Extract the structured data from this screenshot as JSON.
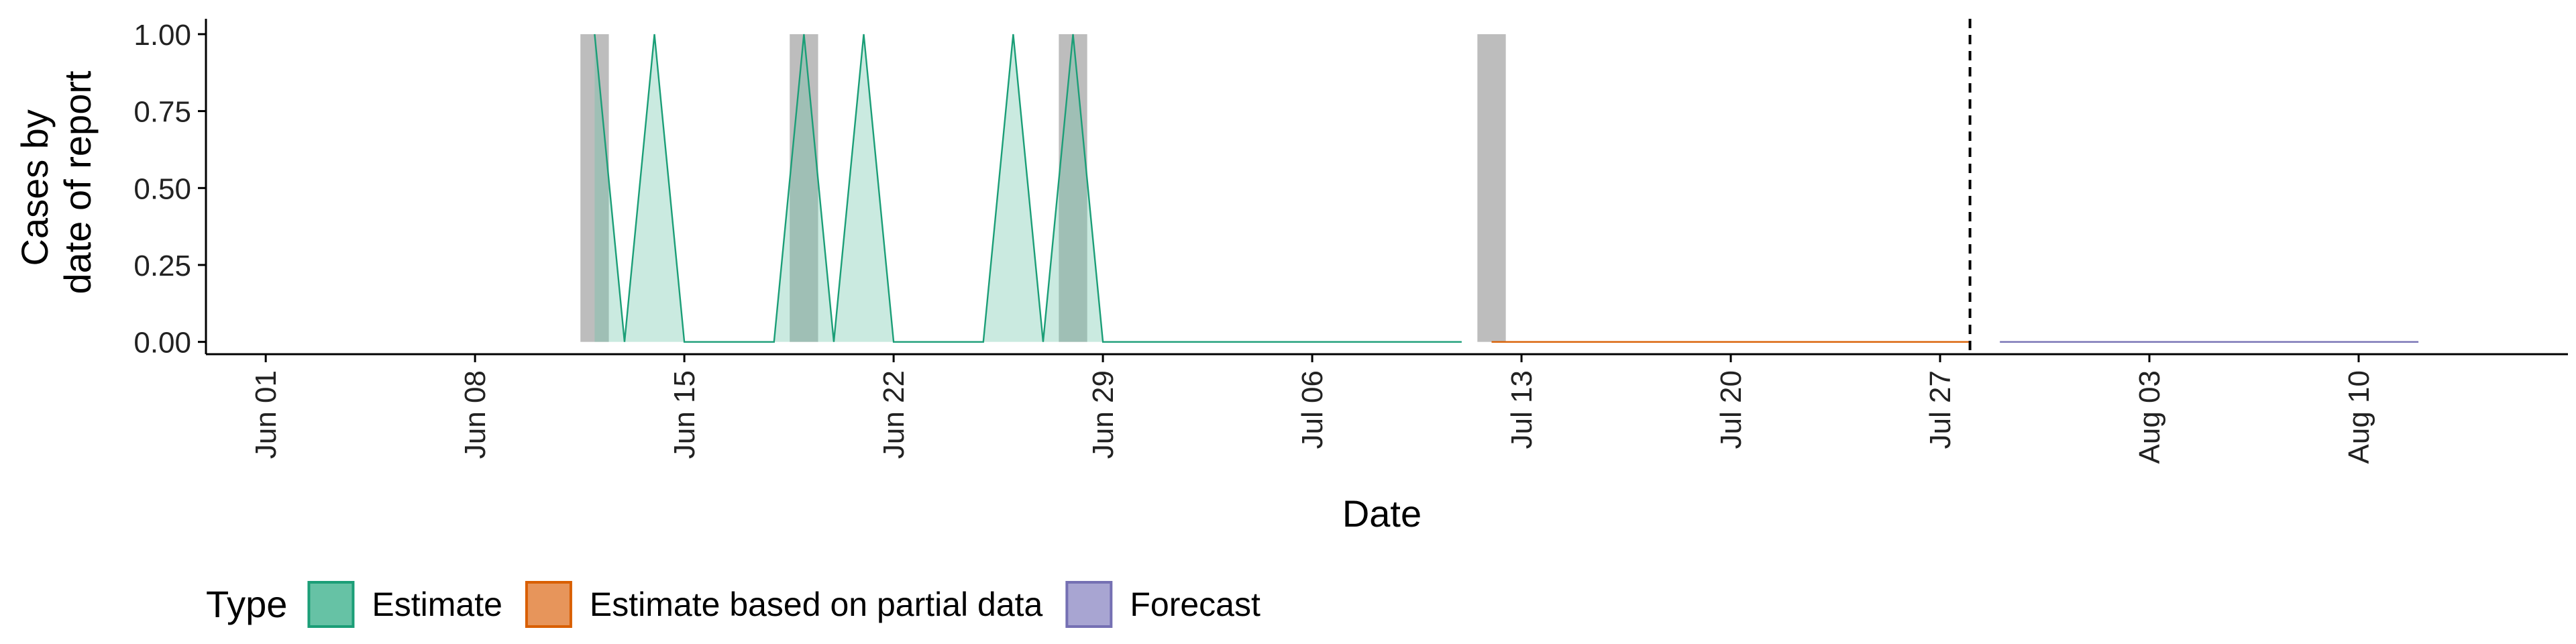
{
  "chart_data": {
    "type": "area",
    "title": "",
    "xlabel": "Date",
    "ylabel_lines": [
      "Cases by",
      "date of report"
    ],
    "ylim": [
      -0.04,
      1.05
    ],
    "xlim": [
      "2020-05-30",
      "2020-08-17"
    ],
    "yticks": [
      {
        "value": 0.0,
        "label": "0.00"
      },
      {
        "value": 0.25,
        "label": "0.25"
      },
      {
        "value": 0.5,
        "label": "0.50"
      },
      {
        "value": 0.75,
        "label": "0.75"
      },
      {
        "value": 1.0,
        "label": "1.00"
      }
    ],
    "xticks": [
      {
        "date": "2020-06-01",
        "label": "Jun 01"
      },
      {
        "date": "2020-06-08",
        "label": "Jun 08"
      },
      {
        "date": "2020-06-15",
        "label": "Jun 15"
      },
      {
        "date": "2020-06-22",
        "label": "Jun 22"
      },
      {
        "date": "2020-06-29",
        "label": "Jun 29"
      },
      {
        "date": "2020-07-06",
        "label": "Jul 06"
      },
      {
        "date": "2020-07-13",
        "label": "Jul 13"
      },
      {
        "date": "2020-07-20",
        "label": "Jul 20"
      },
      {
        "date": "2020-07-27",
        "label": "Jul 27"
      },
      {
        "date": "2020-08-03",
        "label": "Aug 03"
      },
      {
        "date": "2020-08-10",
        "label": "Aug 10"
      }
    ],
    "grid": false,
    "legend_position": "bottom-left",
    "legend_title": "Type",
    "observed_bars": {
      "color": "#bdbdbd",
      "points": [
        {
          "date": "2020-06-12",
          "value": 1
        },
        {
          "date": "2020-06-19",
          "value": 1
        },
        {
          "date": "2020-06-28",
          "value": 1
        },
        {
          "date": "2020-07-12",
          "value": 1
        }
      ]
    },
    "series": [
      {
        "name": "Estimate",
        "color": "#1b9e77",
        "fill": "#66c2a5",
        "x": [
          "2020-06-12",
          "2020-06-13",
          "2020-06-14",
          "2020-06-15",
          "2020-06-16",
          "2020-06-17",
          "2020-06-18",
          "2020-06-19",
          "2020-06-20",
          "2020-06-21",
          "2020-06-22",
          "2020-06-23",
          "2020-06-24",
          "2020-06-25",
          "2020-06-26",
          "2020-06-27",
          "2020-06-28",
          "2020-06-29",
          "2020-06-30",
          "2020-07-01",
          "2020-07-02",
          "2020-07-03",
          "2020-07-04",
          "2020-07-05",
          "2020-07-06",
          "2020-07-07",
          "2020-07-08",
          "2020-07-09",
          "2020-07-10",
          "2020-07-11"
        ],
        "values": [
          1,
          0,
          1,
          0,
          0,
          0,
          0,
          1,
          0,
          1,
          0,
          0,
          0,
          0,
          1,
          0,
          1,
          0,
          0,
          0,
          0,
          0,
          0,
          0,
          0,
          0,
          0,
          0,
          0,
          0
        ]
      },
      {
        "name": "Estimate based on partial data",
        "color": "#d95f02",
        "fill": "#e7955b",
        "x": [
          "2020-07-12",
          "2020-07-28"
        ],
        "values": [
          0,
          0
        ]
      },
      {
        "name": "Forecast",
        "color": "#7570b3",
        "fill": "#a8a5d2",
        "x": [
          "2020-07-29",
          "2020-08-12"
        ],
        "values": [
          0,
          0
        ]
      }
    ],
    "annotations": [
      {
        "type": "vline",
        "date": "2020-07-28",
        "style": "dashed"
      }
    ]
  }
}
